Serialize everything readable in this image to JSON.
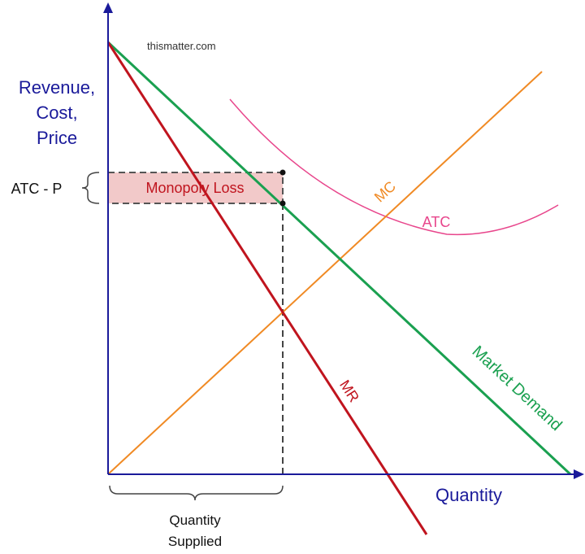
{
  "watermark": "thismatter.com",
  "y_axis_label": [
    "Revenue,",
    "Cost,",
    "Price"
  ],
  "x_axis_label": "Quantity",
  "curves": {
    "demand": {
      "label": "Market Demand",
      "color": "#1aa050"
    },
    "mr": {
      "label": "MR",
      "color": "#c0141e"
    },
    "mc": {
      "label": "MC",
      "color": "#f08a24"
    },
    "atc": {
      "label": "ATC",
      "color": "#e8468c"
    }
  },
  "loss_area": {
    "label": "Monopoly Loss",
    "fill": "#f2c9c9",
    "text_color": "#c0141e"
  },
  "brace_left_label": "ATC - P",
  "brace_bottom_label": [
    "Quantity",
    "Supplied"
  ],
  "axis_color": "#1a1a9a"
}
